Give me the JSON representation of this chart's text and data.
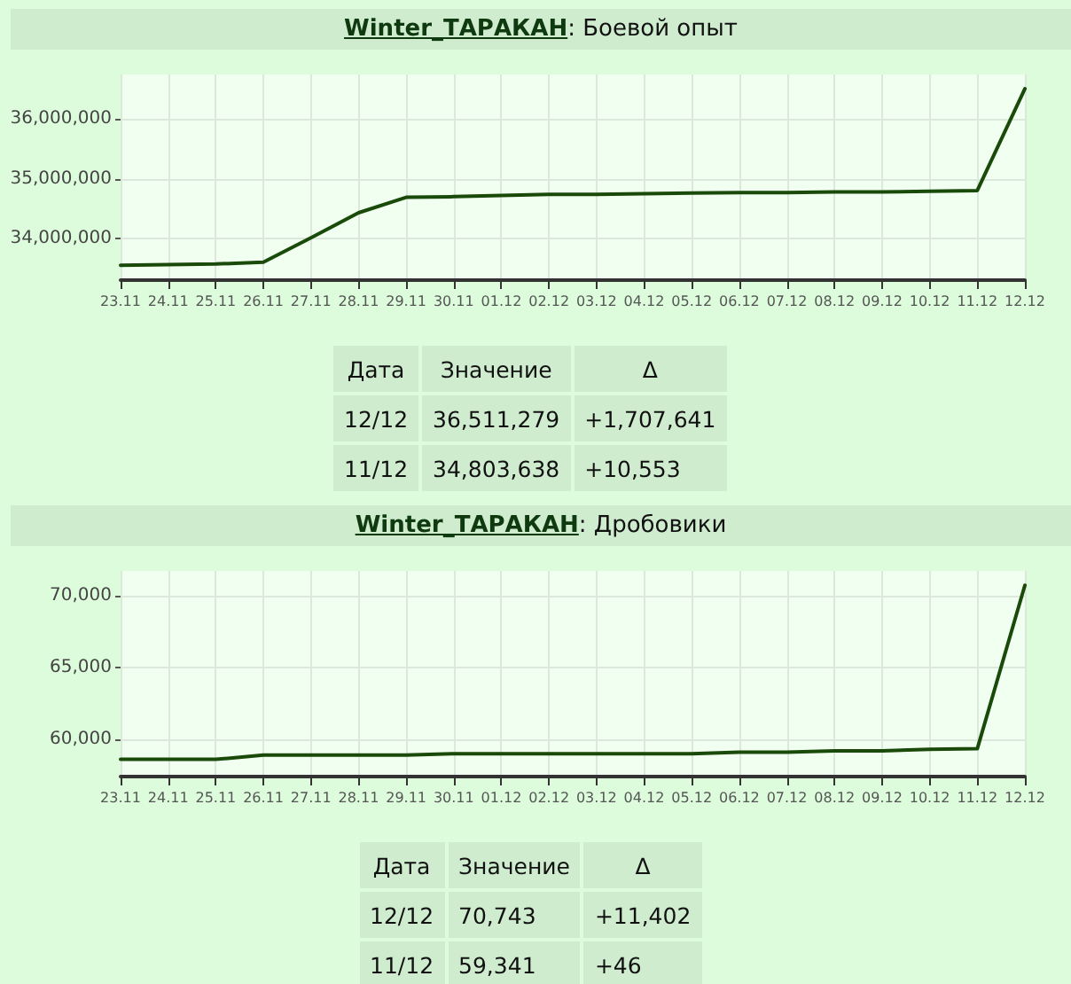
{
  "chart_data": [
    {
      "type": "line",
      "title": "Winter_ТАРАКАН: Боевой опыт",
      "categories": [
        "23.11",
        "24.11",
        "25.11",
        "26.11",
        "27.11",
        "28.11",
        "29.11",
        "30.11",
        "01.12",
        "02.12",
        "03.12",
        "04.12",
        "05.12",
        "06.12",
        "07.12",
        "08.12",
        "09.12",
        "10.12",
        "11.12",
        "12.12"
      ],
      "series": [
        {
          "color": "#1a4a0a",
          "values": [
            33550000,
            33560000,
            33570000,
            33600000,
            34010000,
            34430000,
            34690000,
            34700000,
            34720000,
            34740000,
            34740000,
            34750000,
            34760000,
            34770000,
            34770000,
            34780000,
            34780000,
            34790000,
            34803638,
            36511279
          ]
        }
      ],
      "ylim": [
        33300000,
        36750000
      ],
      "yticks": [
        {
          "value": 34000000,
          "label": "34,000,000"
        },
        {
          "value": 35000000,
          "label": "35,000,000"
        },
        {
          "value": 36000000,
          "label": "36,000,000"
        }
      ],
      "grid": true,
      "marker": "none",
      "line_style": "solid",
      "annotations": [
        "Дата",
        "Значение",
        "Δ",
        "12/12",
        "36,511,279",
        "+1,707,641",
        "11/12",
        "34,803,638",
        "+10,553"
      ]
    },
    {
      "type": "line",
      "title": "Winter_ТАРАКАН: Дробовики",
      "categories": [
        "23.11",
        "24.11",
        "25.11",
        "26.11",
        "27.11",
        "28.11",
        "29.11",
        "30.11",
        "01.12",
        "02.12",
        "03.12",
        "04.12",
        "05.12",
        "06.12",
        "07.12",
        "08.12",
        "09.12",
        "10.12",
        "11.12",
        "12.12"
      ],
      "series": [
        {
          "color": "#1a4a0a",
          "values": [
            58600,
            58600,
            58600,
            58900,
            58900,
            58900,
            58900,
            59000,
            59000,
            59000,
            59000,
            59000,
            59000,
            59100,
            59100,
            59200,
            59200,
            59300,
            59341,
            70743
          ]
        }
      ],
      "ylim": [
        57400,
        71750
      ],
      "yticks": [
        {
          "value": 60000,
          "label": "60,000"
        },
        {
          "value": 65000,
          "label": "65,000"
        },
        {
          "value": 70000,
          "label": "70,000"
        }
      ],
      "grid": true,
      "marker": "none",
      "line_style": "solid",
      "annotations": [
        "Дата",
        "Значение",
        "Δ",
        "12/12",
        "70,743",
        "+11,402",
        "11/12",
        "59,341",
        "+46"
      ]
    }
  ]
}
